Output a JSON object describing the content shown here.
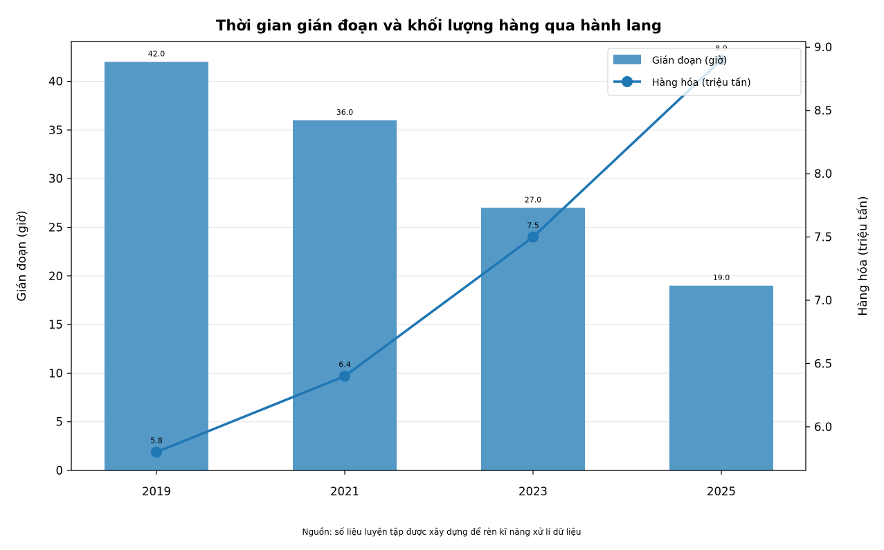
{
  "chart_data": {
    "type": "bar",
    "title": "Thời gian gián đoạn và khối lượng hàng qua hành lang",
    "categories": [
      "2019",
      "2021",
      "2023",
      "2025"
    ],
    "series": [
      {
        "name": "Gián đoạn (giờ)",
        "type": "bar",
        "axis": "left",
        "color": "#5599c7",
        "values": [
          42.0,
          36.0,
          27.0,
          19.0
        ],
        "labels": [
          "42.0",
          "36.0",
          "27.0",
          "19.0"
        ]
      },
      {
        "name": "Hàng hóa (triệu tấn)",
        "type": "line",
        "axis": "right",
        "color": "#1f77b4",
        "marker": "circle",
        "values": [
          5.8,
          6.4,
          7.5,
          8.9
        ],
        "labels": [
          "5.8",
          "6.4",
          "7.5",
          "8.9"
        ]
      }
    ],
    "ylabel": "Gián đoạn (giờ)",
    "ylabel_right": "Hàng hóa (triệu tấn)",
    "ylim": [
      0,
      44.1
    ],
    "ylim_right": [
      5.655,
      9.045
    ],
    "yticks": [
      0,
      5,
      10,
      15,
      20,
      25,
      30,
      35,
      40
    ],
    "ytick_labels": [
      "0",
      "5",
      "10",
      "15",
      "20",
      "25",
      "30",
      "35",
      "40"
    ],
    "yticks_right": [
      6.0,
      6.5,
      7.0,
      7.5,
      8.0,
      8.5,
      9.0
    ],
    "ytick_labels_right": [
      "6.0",
      "6.5",
      "7.0",
      "7.5",
      "8.0",
      "8.5",
      "9.0"
    ],
    "grid": "horizontal",
    "legend_position": "top-right",
    "footnote": "Nguồn: số liệu luyện tập được xây dựng để rèn kĩ năng xử lí dữ liệu"
  }
}
